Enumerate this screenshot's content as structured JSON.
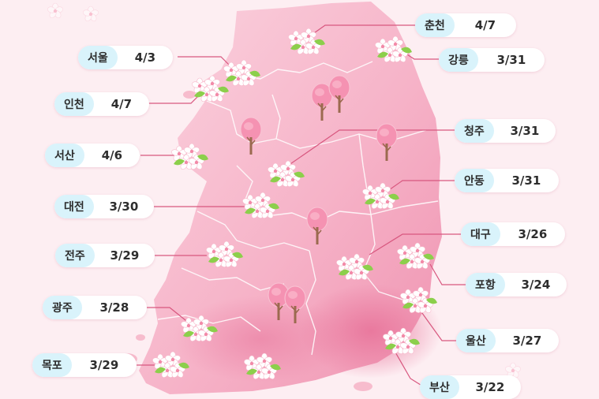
{
  "map": {
    "colors": {
      "background": "#fdeef2",
      "land_light": "#f9c9d7",
      "land_mid": "#f4a9c0",
      "land_dark": "#ee8fae",
      "region_line": "#ffffff",
      "label_bg": "#d9f3fb",
      "leader_line": "#d8577f"
    },
    "icons": [
      "cherry-blossom-icon",
      "tree-icon"
    ]
  },
  "labels": [
    {
      "id": "chuncheon",
      "city": "춘천",
      "date": "4/7"
    },
    {
      "id": "seoul",
      "city": "서울",
      "date": "4/3"
    },
    {
      "id": "gangneung",
      "city": "강릉",
      "date": "3/31"
    },
    {
      "id": "incheon",
      "city": "인천",
      "date": "4/7"
    },
    {
      "id": "cheongju",
      "city": "청주",
      "date": "3/31"
    },
    {
      "id": "seosan",
      "city": "서산",
      "date": "4/6"
    },
    {
      "id": "andong",
      "city": "안동",
      "date": "3/31"
    },
    {
      "id": "daejeon",
      "city": "대전",
      "date": "3/30"
    },
    {
      "id": "daegu",
      "city": "대구",
      "date": "3/26"
    },
    {
      "id": "jeonju",
      "city": "전주",
      "date": "3/29"
    },
    {
      "id": "pohang",
      "city": "포항",
      "date": "3/24"
    },
    {
      "id": "gwangju",
      "city": "광주",
      "date": "3/28"
    },
    {
      "id": "ulsan",
      "city": "울산",
      "date": "3/27"
    },
    {
      "id": "mokpo",
      "city": "목포",
      "date": "3/29"
    },
    {
      "id": "busan",
      "city": "부산",
      "date": "3/22"
    }
  ]
}
